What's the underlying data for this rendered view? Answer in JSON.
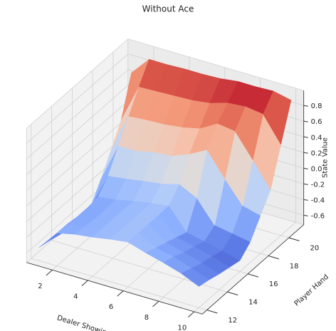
{
  "chart_data": {
    "type": "surface",
    "title": "Without Ace",
    "xlabel": "Dealer Showing",
    "ylabel": "Player Hand",
    "zlabel": "State Value",
    "x": [
      1,
      2,
      3,
      4,
      5,
      6,
      7,
      8,
      9,
      10
    ],
    "y": [
      12,
      13,
      14,
      15,
      16,
      17,
      18,
      19,
      20,
      21
    ],
    "z": [
      [
        -0.55,
        -0.3,
        -0.25,
        -0.22,
        -0.18,
        -0.15,
        -0.22,
        -0.28,
        -0.35,
        -0.45
      ],
      [
        -0.58,
        -0.3,
        -0.27,
        -0.22,
        -0.18,
        -0.15,
        -0.27,
        -0.32,
        -0.4,
        -0.48
      ],
      [
        -0.62,
        -0.32,
        -0.28,
        -0.22,
        -0.18,
        -0.15,
        -0.32,
        -0.38,
        -0.45,
        -0.52
      ],
      [
        -0.65,
        -0.32,
        -0.28,
        -0.22,
        -0.18,
        -0.15,
        -0.37,
        -0.42,
        -0.48,
        -0.55
      ],
      [
        -0.67,
        -0.3,
        -0.27,
        -0.22,
        -0.18,
        -0.15,
        -0.42,
        -0.47,
        -0.52,
        -0.58
      ],
      [
        -0.62,
        -0.15,
        -0.12,
        -0.08,
        -0.05,
        0.01,
        -0.1,
        -0.38,
        -0.42,
        -0.46
      ],
      [
        -0.38,
        0.12,
        0.12,
        0.17,
        0.19,
        0.28,
        0.4,
        0.1,
        -0.18,
        -0.24
      ],
      [
        -0.12,
        0.38,
        0.4,
        0.41,
        0.44,
        0.49,
        0.62,
        0.59,
        0.29,
        -0.02
      ],
      [
        0.15,
        0.64,
        0.65,
        0.66,
        0.67,
        0.7,
        0.77,
        0.79,
        0.76,
        0.44
      ],
      [
        0.64,
        0.88,
        0.88,
        0.89,
        0.89,
        0.9,
        0.93,
        0.93,
        0.94,
        0.89
      ]
    ],
    "xlim": [
      0.55,
      10.45
    ],
    "ylim": [
      11.55,
      21.45
    ],
    "zlim": [
      -0.72,
      0.99
    ],
    "xticks": [
      2,
      4,
      6,
      8,
      10
    ],
    "yticks": [
      12,
      14,
      16,
      18,
      20
    ],
    "zticks": [
      -0.6,
      -0.4,
      -0.2,
      {
        "value": 0,
        "label": "0.0"
      },
      0.2,
      0.4,
      0.6,
      0.8
    ],
    "colormap": "coolwarm",
    "grid": true
  }
}
